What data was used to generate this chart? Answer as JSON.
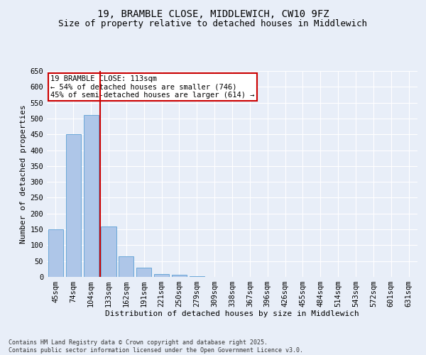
{
  "title1": "19, BRAMBLE CLOSE, MIDDLEWICH, CW10 9FZ",
  "title2": "Size of property relative to detached houses in Middlewich",
  "xlabel": "Distribution of detached houses by size in Middlewich",
  "ylabel": "Number of detached properties",
  "categories": [
    "45sqm",
    "74sqm",
    "104sqm",
    "133sqm",
    "162sqm",
    "191sqm",
    "221sqm",
    "250sqm",
    "279sqm",
    "309sqm",
    "338sqm",
    "367sqm",
    "396sqm",
    "426sqm",
    "455sqm",
    "484sqm",
    "514sqm",
    "543sqm",
    "572sqm",
    "601sqm",
    "631sqm"
  ],
  "values": [
    150,
    450,
    510,
    160,
    65,
    30,
    10,
    6,
    3,
    1,
    0.5,
    0,
    0,
    0,
    0,
    0,
    0,
    0,
    0,
    0,
    0.3
  ],
  "bar_color": "#aec6e8",
  "bar_edge_color": "#5a9fd4",
  "vline_x": 2.5,
  "vline_color": "#cc0000",
  "ylim": [
    0,
    650
  ],
  "yticks": [
    0,
    50,
    100,
    150,
    200,
    250,
    300,
    350,
    400,
    450,
    500,
    550,
    600,
    650
  ],
  "annotation_text": "19 BRAMBLE CLOSE: 113sqm\n← 54% of detached houses are smaller (746)\n45% of semi-detached houses are larger (614) →",
  "annotation_box_color": "#ffffff",
  "annotation_box_edge": "#cc0000",
  "footer1": "Contains HM Land Registry data © Crown copyright and database right 2025.",
  "footer2": "Contains public sector information licensed under the Open Government Licence v3.0.",
  "bg_color": "#e8eef8",
  "plot_bg_color": "#e8eef8",
  "grid_color": "#ffffff",
  "title_fontsize": 10,
  "subtitle_fontsize": 9,
  "axis_fontsize": 8,
  "tick_fontsize": 7.5,
  "footer_fontsize": 6
}
